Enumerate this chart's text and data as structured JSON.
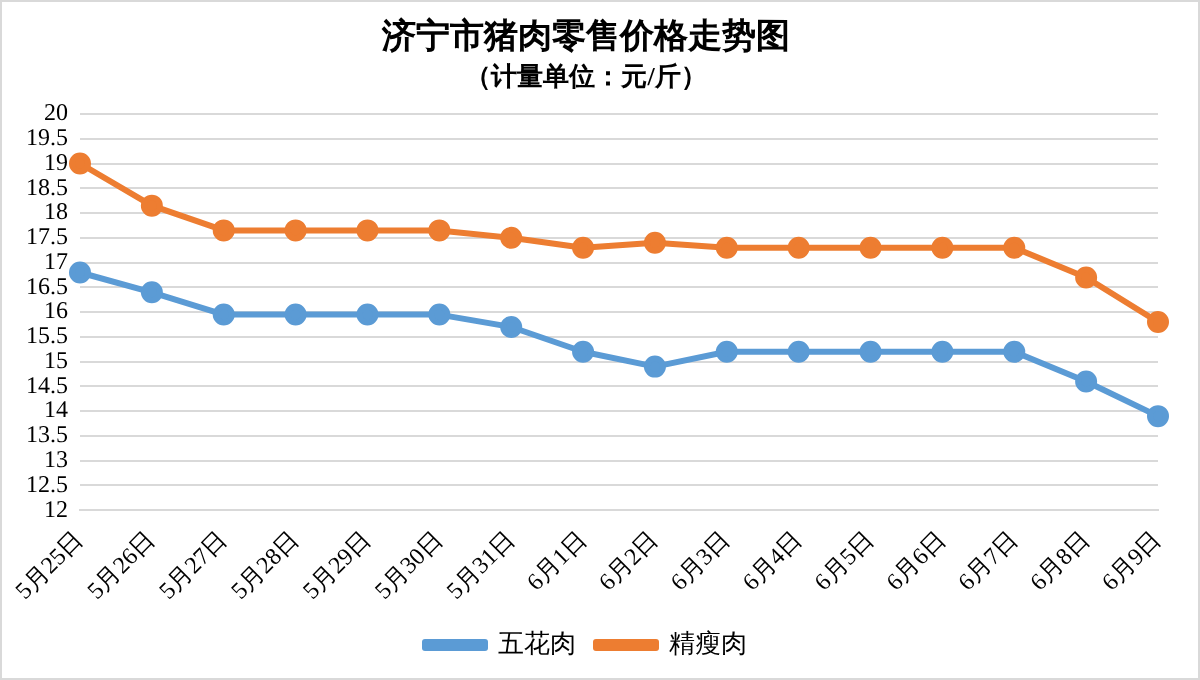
{
  "chart_data": {
    "type": "line",
    "title": "济宁市猪肉零售价格走势图",
    "subtitle": "（计量单位：元/斤）",
    "categories": [
      "5月25日",
      "5月26日",
      "5月27日",
      "5月28日",
      "5月29日",
      "5月30日",
      "5月31日",
      "6月1日",
      "6月2日",
      "6月3日",
      "6月4日",
      "6月5日",
      "6月6日",
      "6月7日",
      "6月8日",
      "6月9日"
    ],
    "series": [
      {
        "name": "五花肉",
        "color": "#5b9bd5",
        "values": [
          16.8,
          16.4,
          15.95,
          15.95,
          15.95,
          15.95,
          15.7,
          15.2,
          14.9,
          15.2,
          15.2,
          15.2,
          15.2,
          15.2,
          14.6,
          13.9
        ]
      },
      {
        "name": "精瘦肉",
        "color": "#ed7d31",
        "values": [
          19.0,
          18.15,
          17.65,
          17.65,
          17.65,
          17.65,
          17.5,
          17.3,
          17.4,
          17.3,
          17.3,
          17.3,
          17.3,
          17.3,
          16.7,
          15.8
        ]
      }
    ],
    "ylim": [
      12,
      20
    ],
    "yticks": [
      12,
      12.5,
      13,
      13.5,
      14,
      14.5,
      15,
      15.5,
      16,
      16.5,
      17,
      17.5,
      18,
      18.5,
      19,
      19.5,
      20
    ],
    "grid": "y",
    "legend": "bottom",
    "marker": "circle",
    "line_style": "solid"
  }
}
